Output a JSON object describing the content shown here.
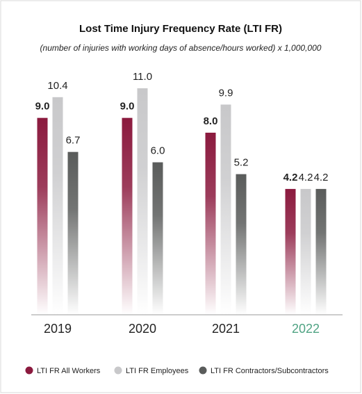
{
  "chart_data": {
    "type": "bar",
    "title": "Lost Time Injury Frequency Rate (LTI FR)",
    "subtitle": "(number of injuries with working days of absence/hours worked) x 1,000,000",
    "categories": [
      "2019",
      "2020",
      "2021",
      "2022"
    ],
    "category_label_colors": [
      "#222222",
      "#222222",
      "#222222",
      "#4fa383"
    ],
    "series": [
      {
        "name": "LTI FR All Workers",
        "color": "#8b1a3e",
        "values": [
          9.0,
          9.0,
          8.0,
          4.2
        ],
        "value_labels": [
          "9.0",
          "9.0",
          "8.0",
          "4.2"
        ],
        "bold": true
      },
      {
        "name": "LTI FR Employees",
        "color": "#c8c8ca",
        "values": [
          10.4,
          11.0,
          9.9,
          4.2
        ],
        "value_labels": [
          "10.4",
          "11.0",
          "9.9",
          "4.2"
        ],
        "bold": false
      },
      {
        "name": "LTI FR Contractors/Subcontractors",
        "color": "#5a5c5b",
        "values": [
          6.7,
          6.0,
          5.2,
          4.2
        ],
        "value_labels": [
          "6.7",
          "6.0",
          "5.2",
          "4.2"
        ],
        "bold": false
      }
    ],
    "ylim": [
      -4.3,
      11.8
    ]
  }
}
